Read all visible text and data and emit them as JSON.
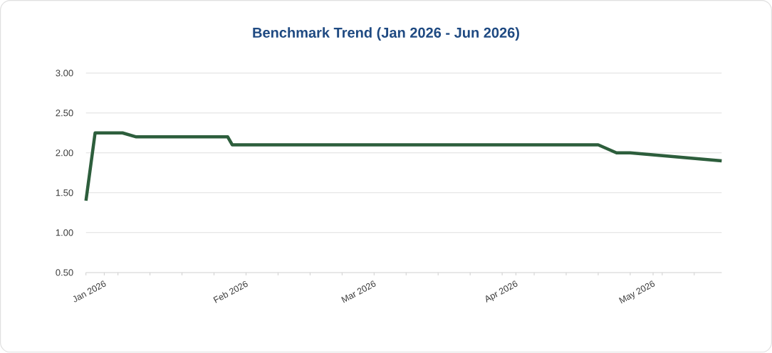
{
  "chart_data": {
    "type": "line",
    "title": "Benchmark Trend (Jan 2026 - Jun 2026)",
    "x": [
      "2025-12-28",
      "2025-12-30",
      "2026-01-05",
      "2026-01-08",
      "2026-01-28",
      "2026-01-29",
      "2026-04-19",
      "2026-04-23",
      "2026-04-26",
      "2026-05-06",
      "2026-05-16"
    ],
    "values": [
      1.4,
      2.25,
      2.25,
      2.2,
      2.2,
      2.1,
      2.1,
      2.0,
      2.0,
      1.95,
      1.9
    ],
    "color": "#2d5e3c",
    "xlim": [
      "2025-12-28",
      "2026-05-16"
    ],
    "xticks": [
      {
        "value": "2025-12-28",
        "label": null
      },
      {
        "value": "2026-01-01",
        "label": "Jan 2026"
      },
      {
        "value": "2026-01-04",
        "label": null
      },
      {
        "value": "2026-01-11",
        "label": null
      },
      {
        "value": "2026-01-18",
        "label": null
      },
      {
        "value": "2026-01-25",
        "label": null
      },
      {
        "value": "2026-02-01",
        "label": "Feb 2026"
      },
      {
        "value": "2026-02-08",
        "label": null
      },
      {
        "value": "2026-02-15",
        "label": null
      },
      {
        "value": "2026-02-22",
        "label": null
      },
      {
        "value": "2026-03-01",
        "label": "Mar 2026"
      },
      {
        "value": "2026-03-08",
        "label": null
      },
      {
        "value": "2026-03-15",
        "label": null
      },
      {
        "value": "2026-03-22",
        "label": null
      },
      {
        "value": "2026-03-29",
        "label": null
      },
      {
        "value": "2026-04-01",
        "label": "Apr 2026"
      },
      {
        "value": "2026-04-05",
        "label": null
      },
      {
        "value": "2026-04-12",
        "label": null
      },
      {
        "value": "2026-04-19",
        "label": null
      },
      {
        "value": "2026-04-26",
        "label": null
      },
      {
        "value": "2026-05-01",
        "label": "May 2026"
      },
      {
        "value": "2026-05-03",
        "label": null
      },
      {
        "value": "2026-05-10",
        "label": null
      }
    ],
    "ylim": [
      0.5,
      3.0
    ],
    "yticks": [
      {
        "value": 0.5,
        "label": "0.50"
      },
      {
        "value": 1.0,
        "label": "1.00"
      },
      {
        "value": 1.5,
        "label": "1.50"
      },
      {
        "value": 2.0,
        "label": "2.00"
      },
      {
        "value": 2.5,
        "label": "2.50"
      },
      {
        "value": 3.0,
        "label": "3.00"
      }
    ],
    "grid": "y"
  }
}
